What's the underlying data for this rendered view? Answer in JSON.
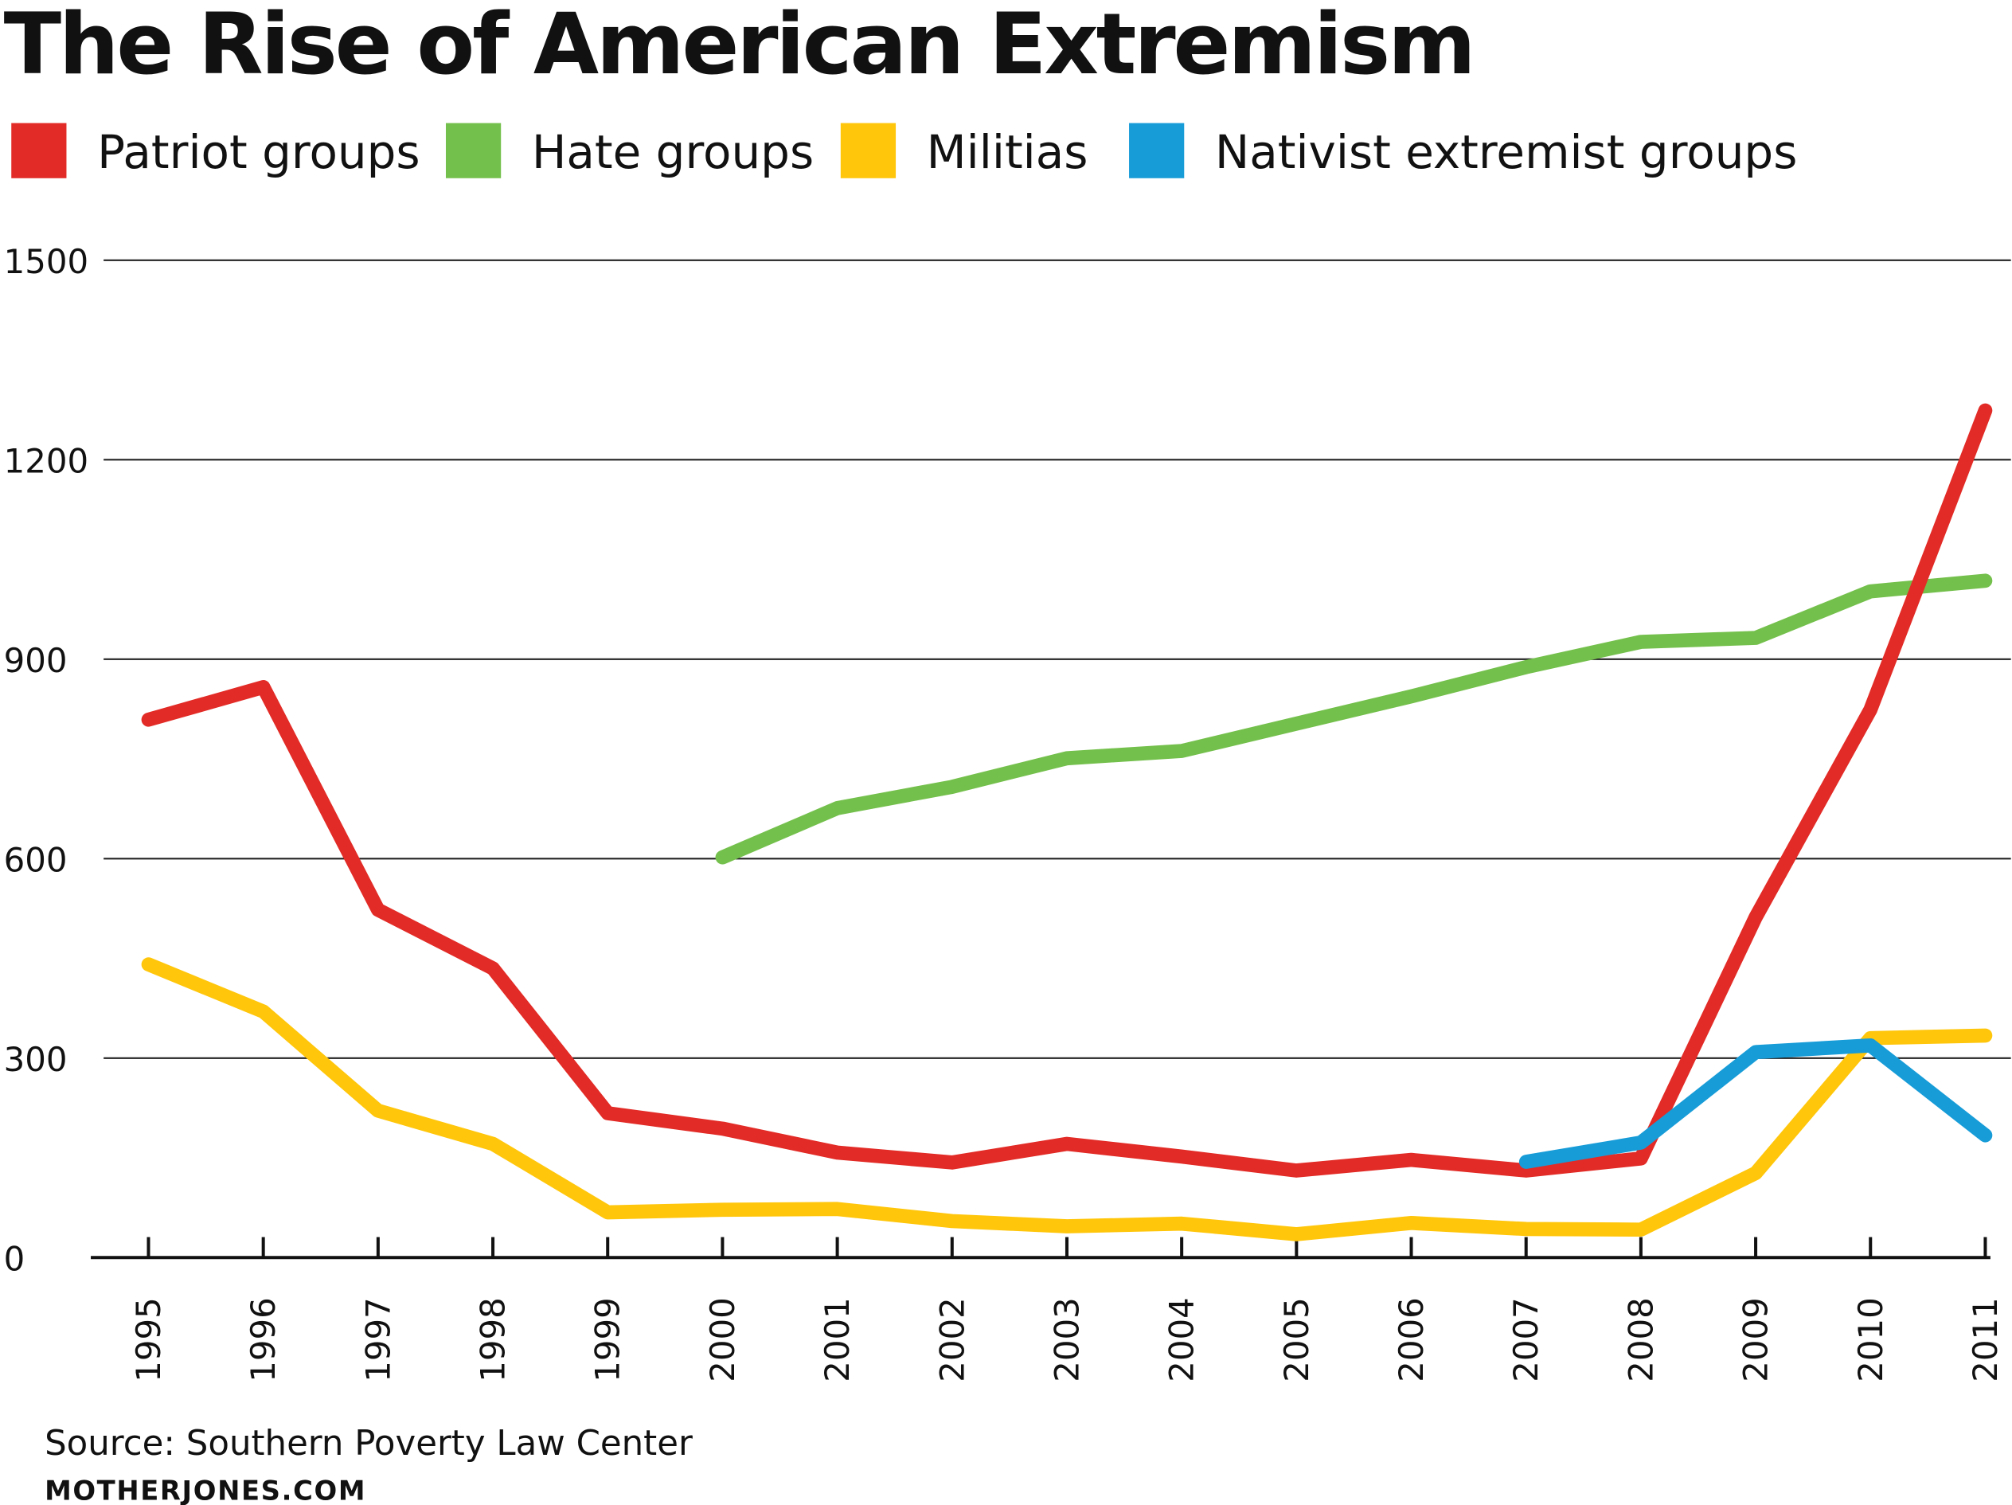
{
  "chart_data": {
    "type": "line",
    "title": "The Rise of American Extremism",
    "x": [
      1995,
      1996,
      1997,
      1998,
      1999,
      2000,
      2001,
      2002,
      2003,
      2004,
      2005,
      2006,
      2007,
      2008,
      2009,
      2010,
      2011
    ],
    "x_tick_labels": [
      "1995",
      "1996",
      "1997",
      "1998",
      "1999",
      "2000",
      "2001",
      "2002",
      "2003",
      "2004",
      "2005",
      "2006",
      "2007",
      "2008",
      "2009",
      "2010",
      "2011"
    ],
    "y_ticks": [
      0,
      300,
      600,
      900,
      1200,
      1500
    ],
    "y_tick_labels": [
      "0",
      "300",
      "600",
      "900",
      "1200",
      "1500"
    ],
    "ylim": [
      0,
      1500
    ],
    "grid": "horizontal",
    "legend_position": "top",
    "series": [
      {
        "name": "Patriot groups",
        "color": "#e22b26",
        "values": [
          809,
          858,
          523,
          435,
          217,
          194,
          158,
          143,
          171,
          152,
          131,
          147,
          131,
          149,
          512,
          824,
          1274
        ]
      },
      {
        "name": "Hate groups",
        "color": "#74c04c",
        "values": [
          null,
          null,
          null,
          null,
          null,
          602,
          676,
          708,
          751,
          762,
          803,
          844,
          888,
          926,
          932,
          1002,
          1018
        ]
      },
      {
        "name": "Militias",
        "color": "#ffc60b",
        "values": [
          441,
          370,
          221,
          171,
          68,
          72,
          73,
          55,
          47,
          51,
          35,
          52,
          43,
          42,
          127,
          330,
          334
        ]
      },
      {
        "name": "Nativist extremist groups",
        "color": "#179cd8",
        "values": [
          null,
          null,
          null,
          null,
          null,
          null,
          null,
          null,
          null,
          null,
          null,
          null,
          144,
          173,
          309,
          319,
          184
        ]
      }
    ],
    "source": "Source: Southern Poverty Law Center",
    "credit": "MOTHERJONES.COM"
  }
}
